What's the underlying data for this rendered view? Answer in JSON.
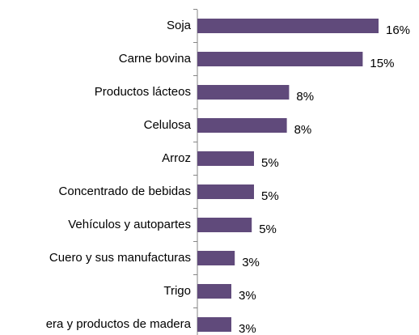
{
  "chart_data": {
    "type": "bar",
    "orientation": "horizontal",
    "categories": [
      "Soja",
      "Carne bovina",
      "Productos lácteos",
      "Celulosa",
      "Arroz",
      "Concentrado de bebidas",
      "Vehículos y autopartes",
      "Cuero y sus manufacturas",
      "Trigo",
      "era y productos de madera"
    ],
    "values": [
      16,
      14.6,
      8.1,
      7.9,
      5,
      5,
      4.8,
      3.3,
      3,
      3
    ],
    "value_labels": [
      "16%",
      "15%",
      "8%",
      "8%",
      "5%",
      "5%",
      "5%",
      "3%",
      "3%",
      "3%"
    ],
    "color": "#604a7b"
  }
}
